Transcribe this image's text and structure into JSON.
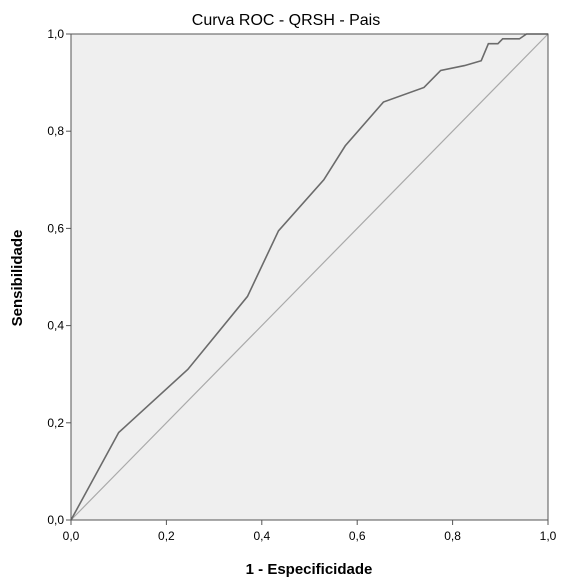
{
  "chart_data": {
    "type": "line",
    "title": "Curva ROC - QRSH - Pais",
    "xlabel": "1 - Especificidade",
    "ylabel": "Sensibilidade",
    "xlim": [
      0,
      1
    ],
    "ylim": [
      0,
      1
    ],
    "x_ticks": [
      "0,0",
      "0,2",
      "0,4",
      "0,6",
      "0,8",
      "1,0"
    ],
    "y_ticks": [
      "0,0",
      "0,2",
      "0,4",
      "0,6",
      "0,8",
      "1,0"
    ],
    "grid": false,
    "series": [
      {
        "color": "#6b6b6b",
        "points": [
          [
            0.0,
            0.0
          ],
          [
            0.1,
            0.18
          ],
          [
            0.245,
            0.31
          ],
          [
            0.37,
            0.46
          ],
          [
            0.435,
            0.595
          ],
          [
            0.53,
            0.7
          ],
          [
            0.575,
            0.77
          ],
          [
            0.655,
            0.86
          ],
          [
            0.74,
            0.89
          ],
          [
            0.775,
            0.925
          ],
          [
            0.825,
            0.935
          ],
          [
            0.86,
            0.945
          ],
          [
            0.875,
            0.98
          ],
          [
            0.895,
            0.98
          ],
          [
            0.905,
            0.99
          ],
          [
            0.94,
            0.99
          ],
          [
            0.955,
            1.0
          ],
          [
            1.0,
            1.0
          ]
        ]
      },
      {
        "color": "#a9a9a9",
        "points": [
          [
            0.0,
            0.0
          ],
          [
            1.0,
            1.0
          ]
        ]
      }
    ],
    "plot_background": "#efefef"
  }
}
